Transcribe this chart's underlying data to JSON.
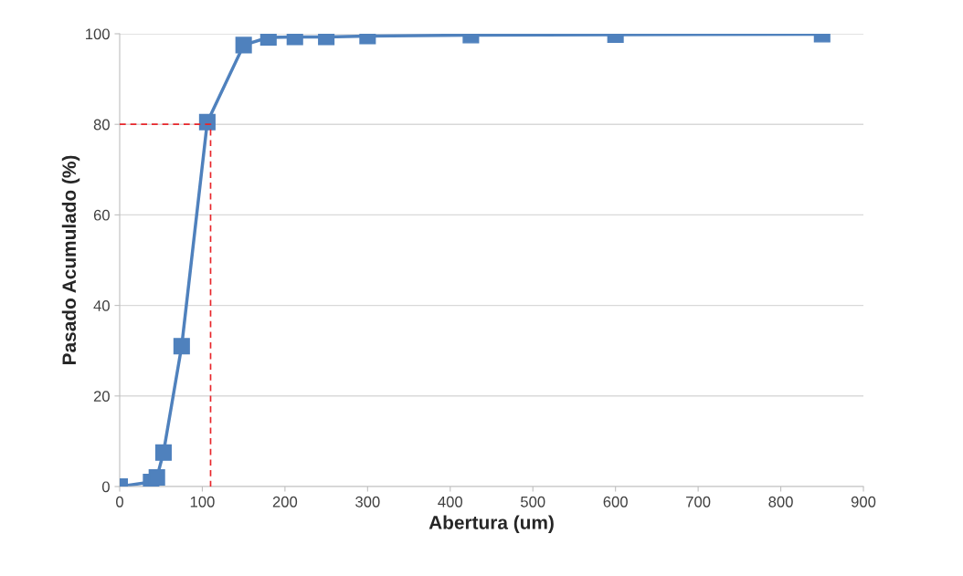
{
  "chart_data": {
    "type": "line",
    "xlabel": "Abertura (um)",
    "ylabel": "Pasado Acumulado (%)",
    "xlim": [
      0,
      900
    ],
    "xticks": [
      0,
      100,
      200,
      300,
      400,
      500,
      600,
      700,
      800,
      900
    ],
    "ylim": [
      0,
      100
    ],
    "yticks": [
      0,
      20,
      40,
      60,
      80,
      100
    ],
    "grid": "y",
    "legend": false,
    "series": [
      {
        "color": "#4f81bd",
        "marker": "square",
        "line_style": "solid",
        "x": [
          0,
          38,
          45,
          53,
          75,
          106,
          150,
          180,
          212,
          250,
          300,
          425,
          600,
          850
        ],
        "values": [
          0,
          1,
          2,
          7.5,
          31,
          80.5,
          97.5,
          99.2,
          99.3,
          99.3,
          99.5,
          99.7,
          99.8,
          99.9
        ]
      },
      {
        "color": "#e8262b",
        "marker": "none",
        "line_style": "dashed",
        "x": [
          0,
          110,
          110
        ],
        "values": [
          80,
          80,
          0
        ]
      }
    ]
  }
}
